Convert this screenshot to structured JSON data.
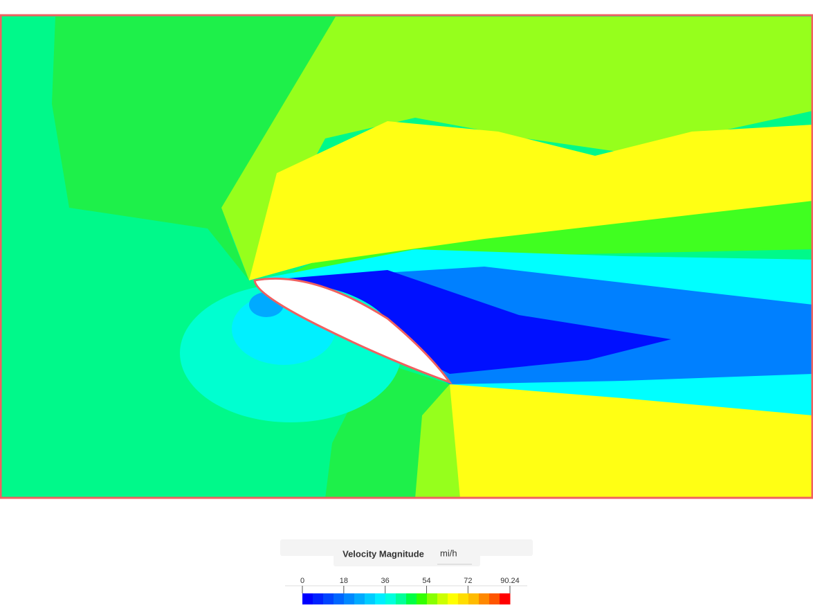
{
  "legend": {
    "title": "Velocity Magnitude",
    "unit": "mi/h",
    "range": [
      0,
      90.24
    ],
    "ticks": [
      0,
      18,
      36,
      54,
      72,
      90.24
    ],
    "colors": [
      "#0000ff",
      "#0022ff",
      "#0044ff",
      "#0066ff",
      "#0088ff",
      "#00aaff",
      "#00ccff",
      "#00eeff",
      "#00ffdd",
      "#00ff99",
      "#00ff44",
      "#33ff00",
      "#88ff00",
      "#ccff00",
      "#ffff00",
      "#ffdd00",
      "#ffbb00",
      "#ff8800",
      "#ff5500",
      "#ff0000"
    ]
  }
}
